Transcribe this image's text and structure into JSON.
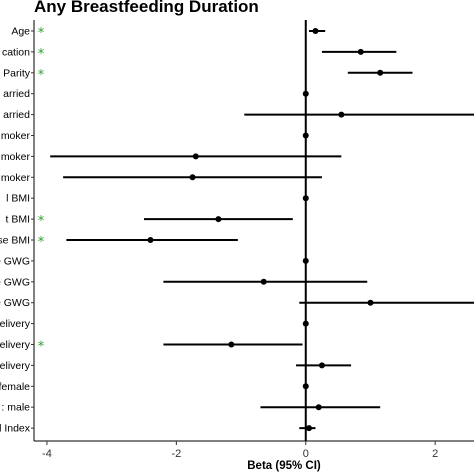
{
  "chart_data": {
    "type": "forest",
    "title": "Any Breastfeeding Duration",
    "xlabel": "Beta (95% CI)",
    "xlim": [
      -4.2,
      2.6
    ],
    "x_ticks": [
      -4,
      -2,
      0,
      2
    ],
    "x_tick_labels": [
      "-4",
      "-2",
      "0",
      "2"
    ],
    "reference_line": 0,
    "marker_color": "#000000",
    "significance_color": "#2ca02c",
    "rows": [
      {
        "label": "Age",
        "beta": 0.15,
        "lo": 0.05,
        "hi": 0.3,
        "significant": true
      },
      {
        "label": "cation",
        "beta": 0.85,
        "lo": 0.25,
        "hi": 1.4,
        "significant": true
      },
      {
        "label": "Parity",
        "beta": 1.15,
        "lo": 0.65,
        "hi": 1.65,
        "significant": true
      },
      {
        "label": "arried",
        "beta": 0.0,
        "lo": 0.0,
        "hi": 0.0,
        "significant": false
      },
      {
        "label": "arried",
        "beta": 0.55,
        "lo": -0.95,
        "hi": 2.6,
        "significant": false
      },
      {
        "label": "moker",
        "beta": 0.0,
        "lo": 0.0,
        "hi": 0.0,
        "significant": false
      },
      {
        "label": "moker",
        "beta": -1.7,
        "lo": -3.95,
        "hi": 0.55,
        "significant": false
      },
      {
        "label": "moker",
        "beta": -1.75,
        "lo": -3.75,
        "hi": 0.25,
        "significant": false
      },
      {
        "label": "l BMI",
        "beta": 0.0,
        "lo": 0.0,
        "hi": 0.0,
        "significant": false
      },
      {
        "label": "t BMI",
        "beta": -1.35,
        "lo": -2.5,
        "hi": -0.2,
        "significant": true
      },
      {
        "label": "se BMI",
        "beta": -2.4,
        "lo": -3.7,
        "hi": -1.05,
        "significant": true
      },
      {
        "label": "e GWG",
        "beta": 0.0,
        "lo": 0.0,
        "hi": 0.0,
        "significant": false
      },
      {
        "label": "e GWG",
        "beta": -0.65,
        "lo": -2.2,
        "hi": 0.95,
        "significant": false
      },
      {
        "label": "e GWG",
        "beta": 1.0,
        "lo": -0.1,
        "hi": 2.6,
        "significant": false
      },
      {
        "label": "elivery",
        "beta": 0.0,
        "lo": 0.0,
        "hi": 0.0,
        "significant": false
      },
      {
        "label": "elivery",
        "beta": -1.15,
        "lo": -2.2,
        "hi": -0.05,
        "significant": true
      },
      {
        "label": "elivery",
        "beta": 0.25,
        "lo": -0.15,
        "hi": 0.7,
        "significant": false
      },
      {
        "label": "female",
        "beta": 0.0,
        "lo": 0.0,
        "hi": 0.0,
        "significant": false
      },
      {
        "label": ": male",
        "beta": 0.2,
        "lo": -0.7,
        "hi": 1.15,
        "significant": false
      },
      {
        "label": "l Index",
        "beta": 0.05,
        "lo": -0.1,
        "hi": 0.15,
        "significant": false
      }
    ]
  }
}
